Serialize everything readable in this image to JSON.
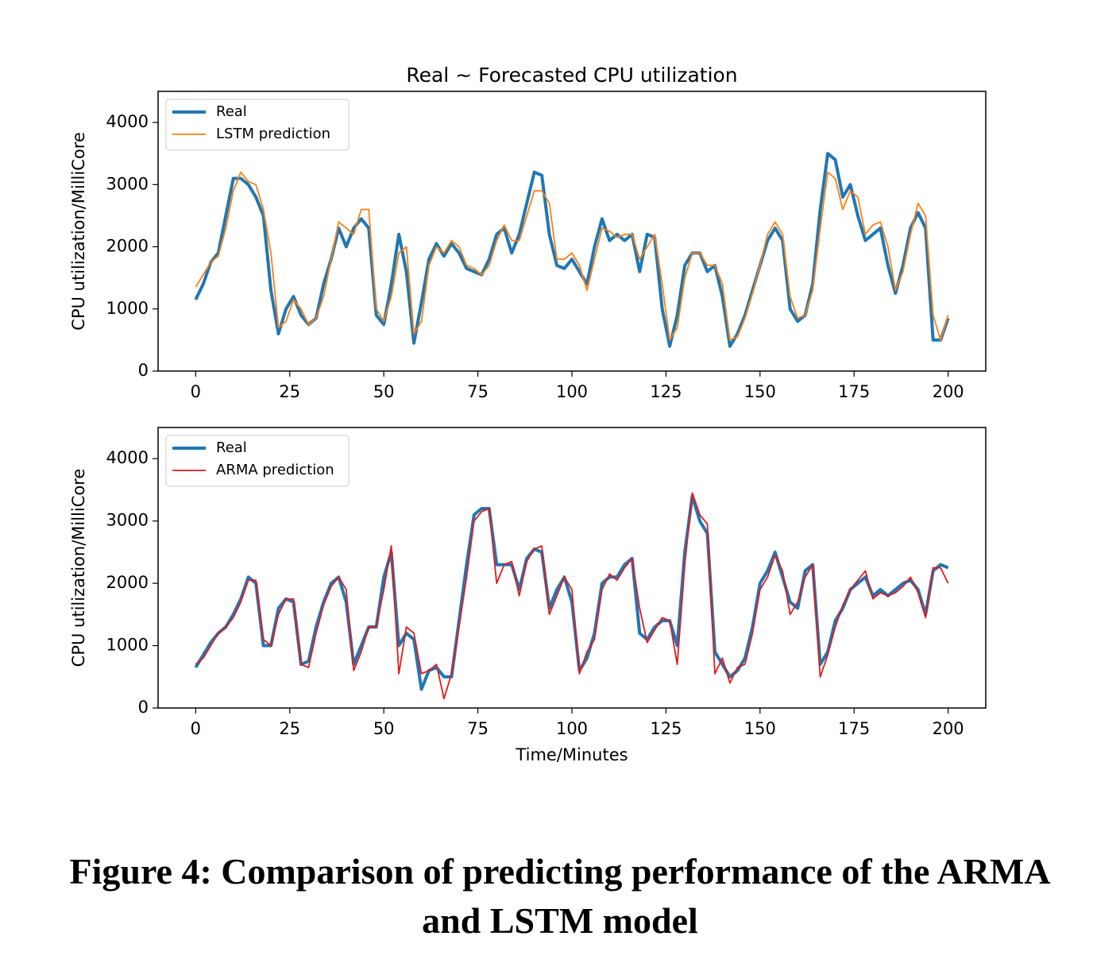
{
  "chart_data": [
    {
      "type": "line",
      "title": "Real ~ Forecasted CPU utilization",
      "ylabel": "CPU utilization/MilliCore",
      "x": [
        0,
        2,
        4,
        6,
        8,
        10,
        12,
        14,
        16,
        18,
        20,
        22,
        24,
        26,
        28,
        30,
        32,
        34,
        36,
        38,
        40,
        42,
        44,
        46,
        48,
        50,
        52,
        54,
        56,
        58,
        60,
        62,
        64,
        66,
        68,
        70,
        72,
        74,
        76,
        78,
        80,
        82,
        84,
        86,
        88,
        90,
        92,
        94,
        96,
        98,
        100,
        102,
        104,
        106,
        108,
        110,
        112,
        114,
        116,
        118,
        120,
        122,
        124,
        126,
        128,
        130,
        132,
        134,
        136,
        138,
        140,
        142,
        144,
        146,
        148,
        150,
        152,
        154,
        156,
        158,
        160,
        162,
        164,
        166,
        168,
        170,
        172,
        174,
        176,
        178,
        180,
        182,
        184,
        186,
        188,
        190,
        192,
        194,
        196,
        198,
        200
      ],
      "series": [
        {
          "name": "Real",
          "color": "#1f77b4",
          "values": [
            1150,
            1400,
            1750,
            1900,
            2500,
            3100,
            3100,
            3000,
            2800,
            2500,
            1300,
            600,
            1000,
            1200,
            900,
            750,
            850,
            1400,
            1800,
            2300,
            2000,
            2300,
            2450,
            2300,
            900,
            750,
            1400,
            2200,
            1600,
            450,
            1100,
            1800,
            2050,
            1850,
            2050,
            1900,
            1650,
            1600,
            1550,
            1800,
            2200,
            2300,
            1900,
            2200,
            2700,
            3200,
            3150,
            2200,
            1700,
            1650,
            1800,
            1600,
            1400,
            2000,
            2450,
            2100,
            2200,
            2100,
            2200,
            1600,
            2200,
            2150,
            1000,
            400,
            900,
            1700,
            1900,
            1900,
            1600,
            1700,
            1200,
            400,
            600,
            900,
            1300,
            1700,
            2100,
            2300,
            2100,
            1000,
            800,
            900,
            1400,
            2600,
            3500,
            3400,
            2800,
            3000,
            2500,
            2100,
            2200,
            2300,
            1700,
            1250,
            1700,
            2300,
            2550,
            2300,
            500,
            500,
            850
          ]
        },
        {
          "name": "LSTM prediction",
          "color": "#ff7f0e",
          "values": [
            1350,
            1550,
            1750,
            1850,
            2300,
            2900,
            3200,
            3050,
            3000,
            2600,
            1900,
            700,
            800,
            1150,
            1000,
            750,
            850,
            1200,
            1800,
            2400,
            2300,
            2200,
            2600,
            2600,
            1000,
            800,
            1200,
            1900,
            2000,
            600,
            800,
            1700,
            2000,
            1900,
            2100,
            2000,
            1700,
            1650,
            1550,
            1700,
            2100,
            2350,
            2100,
            2100,
            2500,
            2900,
            2900,
            2700,
            1800,
            1800,
            1900,
            1700,
            1300,
            1800,
            2300,
            2250,
            2150,
            2200,
            2200,
            1800,
            2000,
            2200,
            1400,
            500,
            700,
            1500,
            1900,
            1900,
            1700,
            1700,
            1400,
            500,
            550,
            850,
            1250,
            1700,
            2200,
            2400,
            2200,
            1200,
            850,
            900,
            1300,
            2300,
            3200,
            3100,
            2600,
            2900,
            2800,
            2200,
            2350,
            2400,
            2000,
            1300,
            1600,
            2200,
            2700,
            2500,
            900,
            500,
            900
          ]
        }
      ],
      "xlim": [
        -10,
        210
      ],
      "ylim": [
        0,
        4500
      ],
      "xticks": [
        0,
        25,
        50,
        75,
        100,
        125,
        150,
        175,
        200
      ],
      "yticks": [
        0,
        1000,
        2000,
        3000,
        4000
      ],
      "legend": "upper left"
    },
    {
      "type": "line",
      "ylabel": "CPU utilization/MilliCore",
      "xlabel": "Time/Minutes",
      "x": [
        0,
        2,
        4,
        6,
        8,
        10,
        12,
        14,
        16,
        18,
        20,
        22,
        24,
        26,
        28,
        30,
        32,
        34,
        36,
        38,
        40,
        42,
        44,
        46,
        48,
        50,
        52,
        54,
        56,
        58,
        60,
        62,
        64,
        66,
        68,
        70,
        72,
        74,
        76,
        78,
        80,
        82,
        84,
        86,
        88,
        90,
        92,
        94,
        96,
        98,
        100,
        102,
        104,
        106,
        108,
        110,
        112,
        114,
        116,
        118,
        120,
        122,
        124,
        126,
        128,
        130,
        132,
        134,
        136,
        138,
        140,
        142,
        144,
        146,
        148,
        150,
        152,
        154,
        156,
        158,
        160,
        162,
        164,
        166,
        168,
        170,
        172,
        174,
        176,
        178,
        180,
        182,
        184,
        186,
        188,
        190,
        192,
        194,
        196,
        198,
        200
      ],
      "series": [
        {
          "name": "Real",
          "color": "#1f77b4",
          "values": [
            650,
            850,
            1050,
            1200,
            1300,
            1500,
            1750,
            2100,
            2000,
            1000,
            1000,
            1600,
            1750,
            1700,
            700,
            750,
            1300,
            1700,
            2000,
            2100,
            1700,
            700,
            1000,
            1300,
            1300,
            2100,
            2500,
            1000,
            1200,
            1100,
            300,
            600,
            650,
            500,
            500,
            1400,
            2300,
            3100,
            3200,
            3200,
            2300,
            2300,
            2300,
            1900,
            2400,
            2550,
            2500,
            1600,
            1900,
            2100,
            1700,
            600,
            800,
            1200,
            2000,
            2100,
            2100,
            2300,
            2400,
            1200,
            1100,
            1300,
            1400,
            1400,
            1000,
            2500,
            3400,
            3000,
            2800,
            900,
            700,
            500,
            600,
            800,
            1300,
            2000,
            2200,
            2500,
            2100,
            1700,
            1600,
            2200,
            2300,
            700,
            900,
            1400,
            1600,
            1900,
            2000,
            2100,
            1800,
            1900,
            1800,
            1900,
            2000,
            2050,
            1900,
            1500,
            2200,
            2300,
            2250
          ]
        },
        {
          "name": "ARMA prediction",
          "color": "#e41a1c",
          "values": [
            700,
            800,
            1000,
            1200,
            1300,
            1450,
            1700,
            2050,
            2050,
            1100,
            1000,
            1500,
            1750,
            1750,
            700,
            650,
            1200,
            1650,
            1950,
            2100,
            1900,
            600,
            900,
            1300,
            1300,
            1900,
            2600,
            550,
            1300,
            1200,
            550,
            600,
            700,
            150,
            550,
            1300,
            2100,
            3000,
            3150,
            3200,
            2000,
            2300,
            2350,
            1800,
            2350,
            2550,
            2600,
            1500,
            1800,
            2100,
            1900,
            550,
            900,
            1100,
            1900,
            2150,
            2050,
            2250,
            2400,
            1600,
            1050,
            1250,
            1450,
            1400,
            700,
            2300,
            3450,
            3100,
            2950,
            550,
            800,
            400,
            650,
            700,
            1200,
            1900,
            2100,
            2450,
            2200,
            1500,
            1700,
            2100,
            2300,
            500,
            850,
            1300,
            1650,
            1900,
            2050,
            2200,
            1750,
            1850,
            1800,
            1850,
            1950,
            2100,
            1850,
            1450,
            2250,
            2250,
            2000
          ]
        }
      ],
      "xlim": [
        -10,
        210
      ],
      "ylim": [
        0,
        4500
      ],
      "xticks": [
        0,
        25,
        50,
        75,
        100,
        125,
        150,
        175,
        200
      ],
      "yticks": [
        0,
        1000,
        2000,
        3000,
        4000
      ],
      "legend": "upper left"
    }
  ],
  "caption": "Figure 4: Comparison of predicting performance of the ARMA and LSTM model"
}
